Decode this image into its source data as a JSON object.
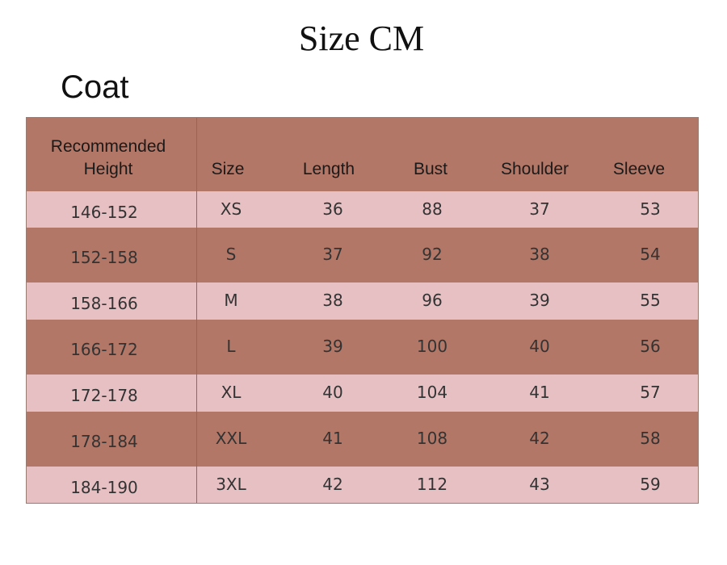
{
  "title": "Size CM",
  "subtitle": "Coat",
  "table": {
    "headers": {
      "height_line1": "Recommended",
      "height_line2": "Height",
      "size": "Size",
      "length": "Length",
      "bust": "Bust",
      "shoulder": "Shoulder",
      "sleeve": "Sleeve"
    },
    "rows": [
      {
        "height": "146-152",
        "size": "XS",
        "length": "36",
        "bust": "88",
        "shoulder": "37",
        "sleeve": "53"
      },
      {
        "height": "152-158",
        "size": "S",
        "length": "37",
        "bust": "92",
        "shoulder": "38",
        "sleeve": "54"
      },
      {
        "height": "158-166",
        "size": "M",
        "length": "38",
        "bust": "96",
        "shoulder": "39",
        "sleeve": "55"
      },
      {
        "height": "166-172",
        "size": "L",
        "length": "39",
        "bust": "100",
        "shoulder": "40",
        "sleeve": "56"
      },
      {
        "height": "172-178",
        "size": "XL",
        "length": "40",
        "bust": "104",
        "shoulder": "41",
        "sleeve": "57"
      },
      {
        "height": "178-184",
        "size": "XXL",
        "length": "41",
        "bust": "108",
        "shoulder": "42",
        "sleeve": "58"
      },
      {
        "height": "184-190",
        "size": "3XL",
        "length": "42",
        "bust": "112",
        "shoulder": "43",
        "sleeve": "59"
      }
    ]
  },
  "colors": {
    "header_bg": "#b27767",
    "dark_row_bg": "#b27767",
    "light_row_bg": "#e7c0c4"
  }
}
